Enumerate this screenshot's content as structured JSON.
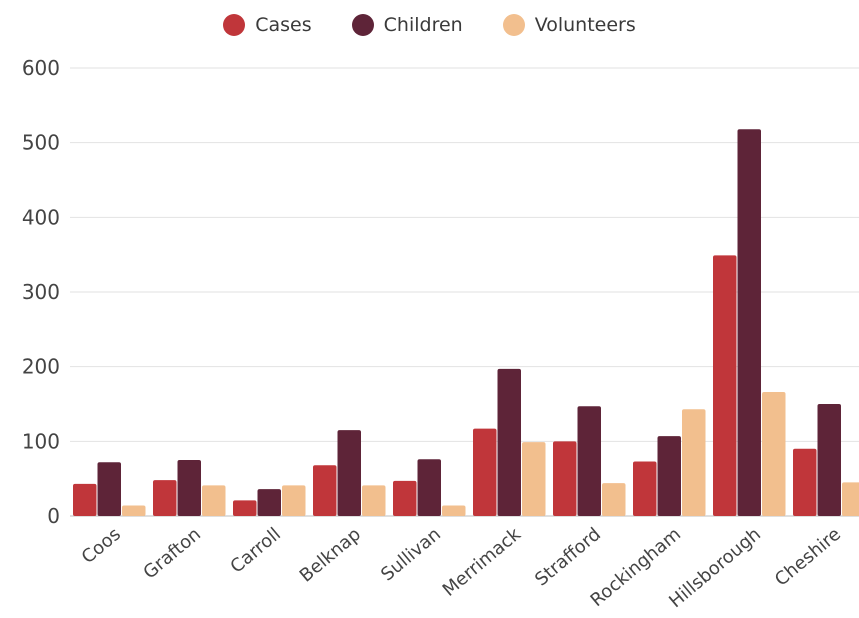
{
  "chart_data": {
    "type": "bar",
    "categories": [
      "Coos",
      "Grafton",
      "Carroll",
      "Belknap",
      "Sullivan",
      "Merrimack",
      "Strafford",
      "Rockingham",
      "Hillsborough",
      "Cheshire"
    ],
    "series": [
      {
        "name": "Cases",
        "color": "#c0363a",
        "values": [
          43,
          48,
          21,
          68,
          47,
          117,
          100,
          73,
          349,
          90
        ]
      },
      {
        "name": "Children",
        "color": "#5e2438",
        "values": [
          72,
          75,
          36,
          115,
          76,
          197,
          147,
          107,
          518,
          150
        ]
      },
      {
        "name": "Volunteers",
        "color": "#f2bf8e",
        "values": [
          14,
          41,
          41,
          41,
          14,
          99,
          44,
          143,
          166,
          45
        ]
      }
    ],
    "y_ticks": [
      "0",
      "100",
      "200",
      "300",
      "400",
      "500",
      "600"
    ],
    "ylim": [
      0,
      600
    ],
    "grid": true,
    "legend_position": "top-center",
    "title": "",
    "xlabel": "",
    "ylabel": ""
  }
}
